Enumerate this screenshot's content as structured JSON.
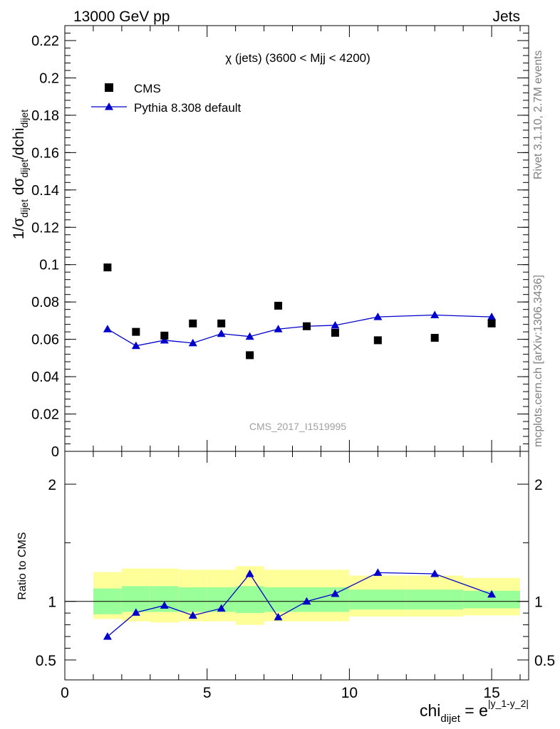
{
  "header": {
    "left": "13000 GeV pp",
    "right": "Jets"
  },
  "side_labels": {
    "rivet": "Rivet 3.1.10,  2.7M events",
    "mcplots": "mcplots.cern.ch [arXiv:1306.3436]"
  },
  "watermark": "CMS_2017_I1519995",
  "chart_data": [
    {
      "type": "scatter",
      "panel": "main",
      "title": "χ (jets) (3600 < Mjj < 4200)",
      "ylabel": "1/σ_dijet dσ_dijet/dchi_dijet",
      "xlim": [
        0,
        16.3
      ],
      "ylim": [
        0,
        0.228
      ],
      "yticks": [
        0,
        0.02,
        0.04,
        0.06,
        0.08,
        0.1,
        0.12,
        0.14,
        0.16,
        0.18,
        0.2,
        0.22
      ],
      "ytick_labels": [
        "0",
        "0.02",
        "0.04",
        "0.06",
        "0.08",
        "0.1",
        "0.12",
        "0.14",
        "0.16",
        "0.18",
        "0.2",
        "0.22"
      ],
      "legend_position": "top-left",
      "series": [
        {
          "name": "CMS",
          "marker": "square",
          "color": "#000000",
          "x": [
            1.5,
            2.5,
            3.5,
            4.5,
            5.5,
            6.5,
            7.5,
            8.5,
            9.5,
            11,
            13,
            15
          ],
          "y": [
            0.0985,
            0.064,
            0.062,
            0.0685,
            0.0685,
            0.0515,
            0.078,
            0.067,
            0.0635,
            0.0595,
            0.0608,
            0.0685
          ]
        },
        {
          "name": "Pythia 8.308 default",
          "marker": "triangle",
          "color": "#0000cc",
          "x": [
            1.5,
            2.5,
            3.5,
            4.5,
            5.5,
            6.5,
            7.5,
            8.5,
            9.5,
            11,
            13,
            15
          ],
          "y": [
            0.0655,
            0.0565,
            0.0595,
            0.058,
            0.063,
            0.0615,
            0.0655,
            0.067,
            0.0675,
            0.072,
            0.073,
            0.072
          ],
          "yerr": [
            0.0015,
            0.0012,
            0.0012,
            0.0012,
            0.0015,
            0.0015,
            0.0015,
            0.0012,
            0.0015,
            0.0008,
            0.0007,
            0.0007
          ]
        }
      ]
    },
    {
      "type": "line",
      "panel": "ratio",
      "ylabel": "Ratio to CMS",
      "xlabel": "chi_dijet = e^|y_1-y_2|",
      "xlim": [
        0,
        16.3
      ],
      "ylim": [
        0.33,
        2.28
      ],
      "xticks": [
        0,
        5,
        10,
        15
      ],
      "xtick_labels": [
        "0",
        "5",
        "10",
        "15"
      ],
      "yticks": [
        0.5,
        1,
        2
      ],
      "ytick_labels": [
        "0.5",
        "1",
        "2"
      ],
      "reference_line": 1,
      "bands": [
        {
          "x0": 1,
          "x1": 2,
          "inner": [
            0.89,
            1.11
          ],
          "outer": [
            0.85,
            1.25
          ]
        },
        {
          "x0": 2,
          "x1": 3,
          "inner": [
            0.91,
            1.13
          ],
          "outer": [
            0.83,
            1.28
          ]
        },
        {
          "x0": 3,
          "x1": 4,
          "inner": [
            0.91,
            1.13
          ],
          "outer": [
            0.82,
            1.28
          ]
        },
        {
          "x0": 4,
          "x1": 5,
          "inner": [
            0.91,
            1.12
          ],
          "outer": [
            0.83,
            1.27
          ]
        },
        {
          "x0": 5,
          "x1": 6,
          "inner": [
            0.91,
            1.12
          ],
          "outer": [
            0.83,
            1.27
          ]
        },
        {
          "x0": 6,
          "x1": 7,
          "inner": [
            0.9,
            1.13
          ],
          "outer": [
            0.8,
            1.3
          ]
        },
        {
          "x0": 7,
          "x1": 8,
          "inner": [
            0.91,
            1.12
          ],
          "outer": [
            0.83,
            1.27
          ]
        },
        {
          "x0": 8,
          "x1": 10,
          "inner": [
            0.91,
            1.12
          ],
          "outer": [
            0.83,
            1.27
          ]
        },
        {
          "x0": 10,
          "x1": 12,
          "inner": [
            0.93,
            1.1
          ],
          "outer": [
            0.87,
            1.22
          ]
        },
        {
          "x0": 12,
          "x1": 14,
          "inner": [
            0.93,
            1.1
          ],
          "outer": [
            0.87,
            1.22
          ]
        },
        {
          "x0": 14,
          "x1": 16,
          "inner": [
            0.94,
            1.09
          ],
          "outer": [
            0.88,
            1.2
          ]
        }
      ],
      "series": [
        {
          "name": "Pythia 8.308 default",
          "color": "#0000cc",
          "x": [
            1.5,
            2.5,
            3.5,
            4.5,
            5.5,
            6.5,
            7.5,
            8.5,
            9.5,
            11,
            13,
            15
          ],
          "y": [
            0.7,
            0.905,
            0.965,
            0.88,
            0.94,
            1.235,
            0.865,
            1.0,
            1.065,
            1.245,
            1.235,
            1.06
          ],
          "yerr": [
            0.02,
            0.02,
            0.02,
            0.02,
            0.02,
            0.03,
            0.02,
            0.02,
            0.02,
            0.012,
            0.012,
            0.012
          ]
        }
      ]
    }
  ]
}
